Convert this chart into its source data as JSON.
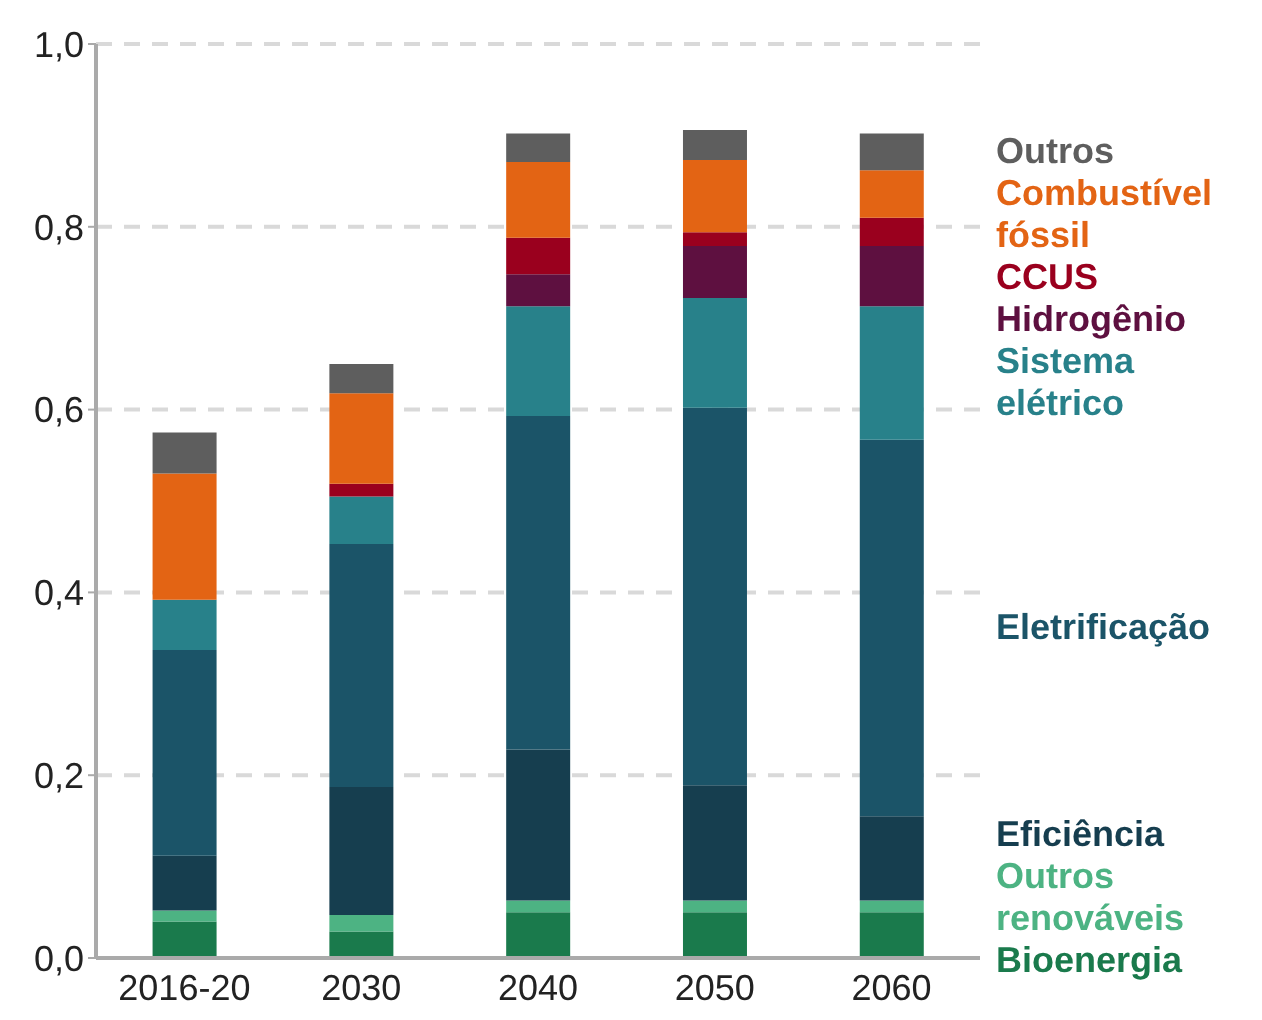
{
  "chart_data": {
    "type": "bar",
    "stacked": true,
    "categories": [
      "2016-20",
      "2030",
      "2040",
      "2050",
      "2060"
    ],
    "series": [
      {
        "name": "Bioenergia",
        "color": "#1a7a4c",
        "values": [
          0.04,
          0.029,
          0.05,
          0.05,
          0.05
        ]
      },
      {
        "name": "Outros renováveis",
        "color": "#4db383",
        "values": [
          0.012,
          0.018,
          0.013,
          0.013,
          0.013
        ]
      },
      {
        "name": "Eficiência",
        "color": "#163e4f",
        "values": [
          0.06,
          0.14,
          0.165,
          0.126,
          0.092
        ]
      },
      {
        "name": "Eletrificação",
        "color": "#1b5468",
        "values": [
          0.225,
          0.266,
          0.365,
          0.413,
          0.412
        ]
      },
      {
        "name": "Sistema elétrico",
        "color": "#28818a",
        "values": [
          0.055,
          0.052,
          0.12,
          0.12,
          0.146
        ]
      },
      {
        "name": "Hidrogênio",
        "color": "#5e1040",
        "values": [
          null,
          null,
          0.035,
          0.057,
          0.066
        ]
      },
      {
        "name": "CCUS",
        "color": "#9a001e",
        "values": [
          null,
          0.014,
          0.04,
          0.015,
          0.031
        ]
      },
      {
        "name": "Combustível fóssil",
        "color": "#e36414",
        "values": [
          0.138,
          0.099,
          0.083,
          0.079,
          0.052
        ]
      },
      {
        "name": "Outros",
        "color": "#5e5e5e",
        "values": [
          0.045,
          0.032,
          0.031,
          0.033,
          0.04
        ]
      }
    ],
    "ylim": [
      0,
      1
    ],
    "yticks": [
      {
        "value": 0,
        "label": "0,0"
      },
      {
        "value": 0.2,
        "label": "0,2"
      },
      {
        "value": 0.4,
        "label": "0,4"
      },
      {
        "value": 0.6,
        "label": "0,6"
      },
      {
        "value": 0.8,
        "label": "0,8"
      },
      {
        "value": 1,
        "label": "1,0"
      }
    ],
    "grid": "y",
    "legend": "right"
  }
}
